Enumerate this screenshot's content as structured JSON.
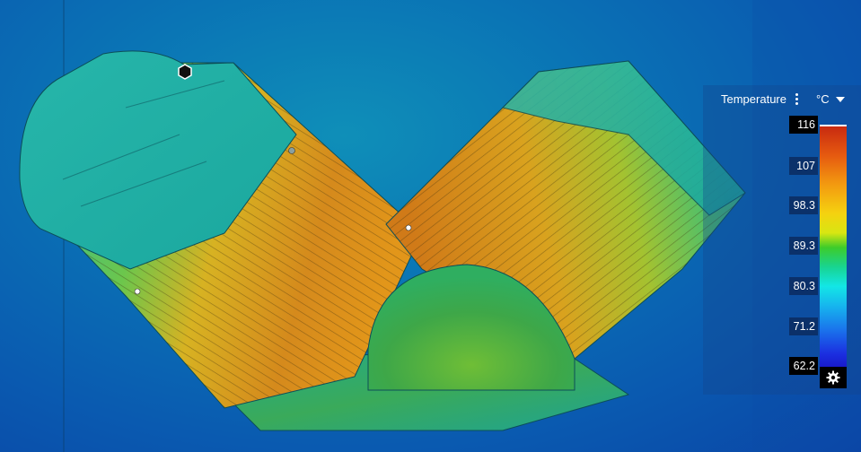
{
  "legend": {
    "title": "Temperature",
    "unit": "°C",
    "ticks": [
      "116",
      "107",
      "98.3",
      "89.3",
      "80.3",
      "71.2",
      "62.2"
    ],
    "colors": {
      "hot": "#c82a10",
      "mid": "#3dcc2a",
      "cold": "#1818c8"
    }
  },
  "icons": {
    "menu": "more-vertical-icon",
    "unit_dropdown": "caret-down-icon",
    "settings": "gear-icon",
    "pivot": "hexagon-pivot-icon"
  }
}
